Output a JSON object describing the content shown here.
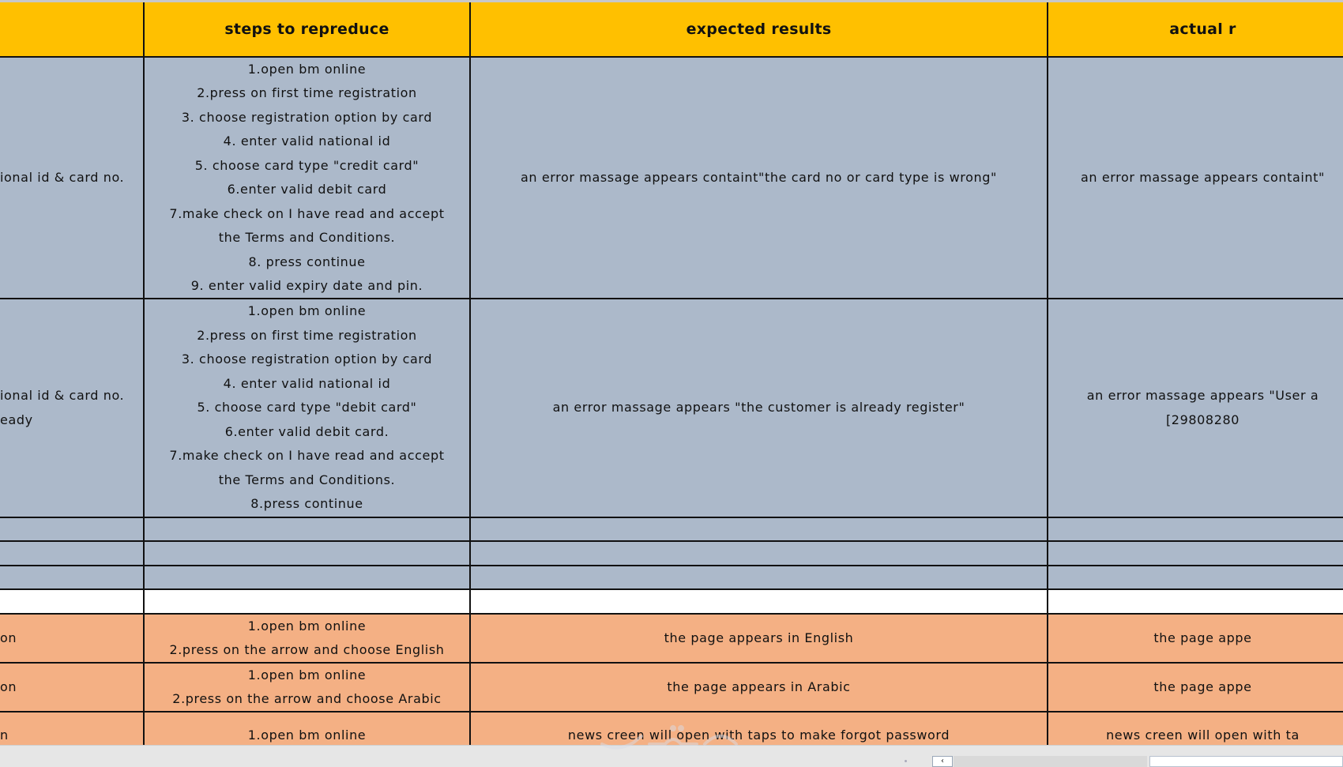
{
  "colors": {
    "header": "#FFC000",
    "blue_grey": "#ACB9CA",
    "orange": "#F4B084",
    "white": "#FFFFFF",
    "border": "#111111"
  },
  "header": [
    "",
    "steps to repreduce",
    "expected results",
    "actual r"
  ],
  "rows": [
    {
      "fill": "blue_grey",
      "cells": [
        [
          "ional id & card no."
        ],
        [
          "1.open bm online",
          "2.press on first time registration",
          "3. choose registration option by card",
          "4. enter valid national id",
          "5.  choose card type \"credit card\"",
          "6.enter valid debit card",
          "7.make check on I have read and accept",
          "the Terms and Conditions.",
          "8. press continue",
          "9. enter valid expiry date and pin."
        ],
        [
          "an error massage appears containt\"the card no or card type is wrong\""
        ],
        [
          "an error massage appears containt\""
        ]
      ]
    },
    {
      "fill": "blue_grey",
      "cells": [
        [
          "ional id & card no.",
          "eady"
        ],
        [
          "1.open bm online",
          "2.press on first time registration",
          "3. choose registration option by card",
          "4. enter valid national id",
          "5.  choose card type \"debit card\"",
          "6.enter valid debit card.",
          "7.make check on I have read and accept",
          "the Terms and Conditions.",
          "8.press continue"
        ],
        [
          "an error massage appears  \"the customer is already register\""
        ],
        [
          "an error massage appears \"User a",
          "[29808280"
        ]
      ]
    },
    {
      "fill": "blue_grey",
      "cells": [
        [],
        [],
        [],
        []
      ]
    },
    {
      "fill": "blue_grey",
      "cells": [
        [],
        [],
        [],
        []
      ]
    },
    {
      "fill": "blue_grey",
      "cells": [
        [],
        [],
        [],
        []
      ]
    },
    {
      "fill": "white",
      "cells": [
        [],
        [],
        [],
        []
      ]
    },
    {
      "fill": "orange",
      "cells": [
        [
          "on"
        ],
        [
          "1.open bm online",
          "2.press on the arrow and choose English"
        ],
        [
          "the page appears in English"
        ],
        [
          "the page appe"
        ]
      ]
    },
    {
      "fill": "orange",
      "cells": [
        [
          "on"
        ],
        [
          "1.open bm online",
          "2.press on the arrow and choose Arabic"
        ],
        [
          "the page appears in Arabic"
        ],
        [
          "the page appe"
        ]
      ]
    },
    {
      "fill": "orange",
      "cells": [
        [
          "n"
        ],
        [
          "1.open bm online"
        ],
        [
          "news creen will open with taps to make forgot password"
        ],
        [
          "news creen will open with ta"
        ]
      ]
    }
  ],
  "scrollbar": {
    "left_arrow": "‹"
  },
  "watermark": "مستقل"
}
